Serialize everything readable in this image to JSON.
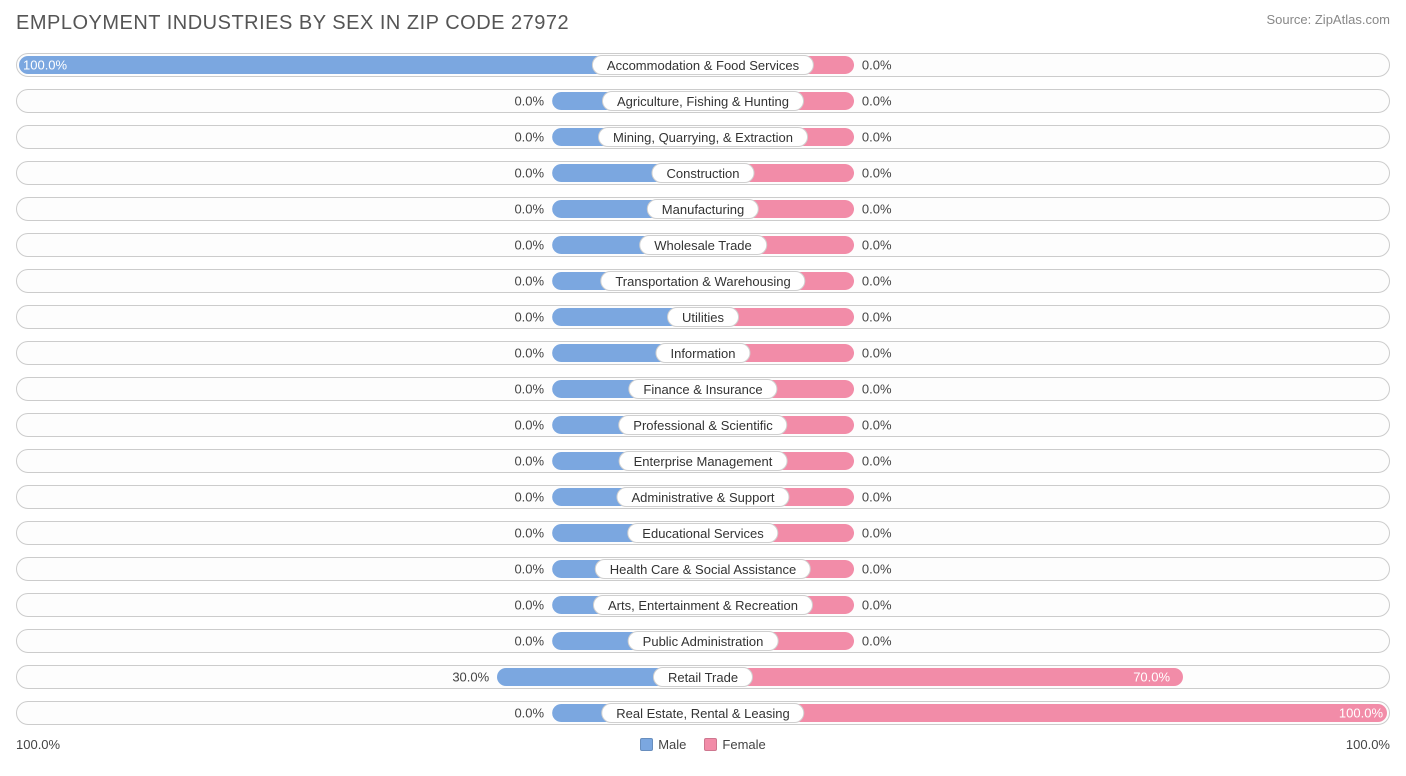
{
  "header": {
    "title": "EMPLOYMENT INDUSTRIES BY SEX IN ZIP CODE 27972",
    "source": "Source: ZipAtlas.com"
  },
  "chart": {
    "type": "diverging-bar",
    "male_color": "#7ba7e0",
    "female_color": "#f28ca8",
    "pill_bg": "#ffffff",
    "pill_border": "#d0d0d0",
    "row_border": "#cccccc",
    "text_color": "#444444",
    "inside_text_color": "#ffffff",
    "stub_width_pct": 11,
    "rows": [
      {
        "category": "Accommodation & Food Services",
        "male_pct": 100.0,
        "female_pct": 0.0,
        "male_label": "100.0%",
        "female_label": "0.0%"
      },
      {
        "category": "Agriculture, Fishing & Hunting",
        "male_pct": 0.0,
        "female_pct": 0.0,
        "male_label": "0.0%",
        "female_label": "0.0%"
      },
      {
        "category": "Mining, Quarrying, & Extraction",
        "male_pct": 0.0,
        "female_pct": 0.0,
        "male_label": "0.0%",
        "female_label": "0.0%"
      },
      {
        "category": "Construction",
        "male_pct": 0.0,
        "female_pct": 0.0,
        "male_label": "0.0%",
        "female_label": "0.0%"
      },
      {
        "category": "Manufacturing",
        "male_pct": 0.0,
        "female_pct": 0.0,
        "male_label": "0.0%",
        "female_label": "0.0%"
      },
      {
        "category": "Wholesale Trade",
        "male_pct": 0.0,
        "female_pct": 0.0,
        "male_label": "0.0%",
        "female_label": "0.0%"
      },
      {
        "category": "Transportation & Warehousing",
        "male_pct": 0.0,
        "female_pct": 0.0,
        "male_label": "0.0%",
        "female_label": "0.0%"
      },
      {
        "category": "Utilities",
        "male_pct": 0.0,
        "female_pct": 0.0,
        "male_label": "0.0%",
        "female_label": "0.0%"
      },
      {
        "category": "Information",
        "male_pct": 0.0,
        "female_pct": 0.0,
        "male_label": "0.0%",
        "female_label": "0.0%"
      },
      {
        "category": "Finance & Insurance",
        "male_pct": 0.0,
        "female_pct": 0.0,
        "male_label": "0.0%",
        "female_label": "0.0%"
      },
      {
        "category": "Professional & Scientific",
        "male_pct": 0.0,
        "female_pct": 0.0,
        "male_label": "0.0%",
        "female_label": "0.0%"
      },
      {
        "category": "Enterprise Management",
        "male_pct": 0.0,
        "female_pct": 0.0,
        "male_label": "0.0%",
        "female_label": "0.0%"
      },
      {
        "category": "Administrative & Support",
        "male_pct": 0.0,
        "female_pct": 0.0,
        "male_label": "0.0%",
        "female_label": "0.0%"
      },
      {
        "category": "Educational Services",
        "male_pct": 0.0,
        "female_pct": 0.0,
        "male_label": "0.0%",
        "female_label": "0.0%"
      },
      {
        "category": "Health Care & Social Assistance",
        "male_pct": 0.0,
        "female_pct": 0.0,
        "male_label": "0.0%",
        "female_label": "0.0%"
      },
      {
        "category": "Arts, Entertainment & Recreation",
        "male_pct": 0.0,
        "female_pct": 0.0,
        "male_label": "0.0%",
        "female_label": "0.0%"
      },
      {
        "category": "Public Administration",
        "male_pct": 0.0,
        "female_pct": 0.0,
        "male_label": "0.0%",
        "female_label": "0.0%"
      },
      {
        "category": "Retail Trade",
        "male_pct": 30.0,
        "female_pct": 70.0,
        "male_label": "30.0%",
        "female_label": "70.0%"
      },
      {
        "category": "Real Estate, Rental & Leasing",
        "male_pct": 0.0,
        "female_pct": 100.0,
        "male_label": "0.0%",
        "female_label": "100.0%"
      }
    ]
  },
  "footer": {
    "axis_left": "100.0%",
    "axis_right": "100.0%",
    "legend_male": "Male",
    "legend_female": "Female"
  }
}
